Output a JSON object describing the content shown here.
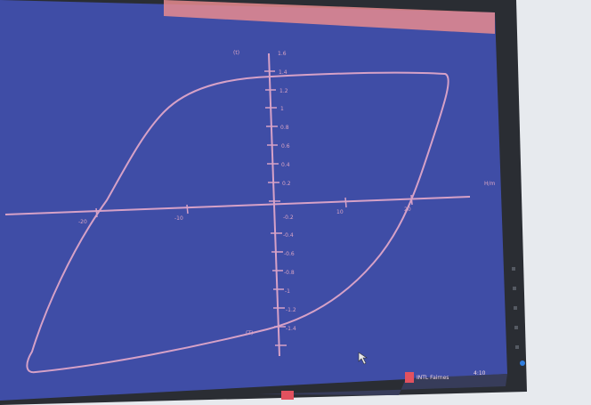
{
  "scene": {
    "wall_color": "#e7eaee",
    "bezel_color": "#2a2d33",
    "screen_color": "#3f4da6",
    "trace_color": "#d6a1c7",
    "accent_color": "#e2515f"
  },
  "plot": {
    "y_axis_label_top": "(t)",
    "y_axis_label_bottom": "(T)",
    "x_axis_unit": "H/m",
    "y_ticks": [
      "1.6",
      "1.4",
      "1.2",
      "1",
      "0.8",
      "0.6",
      "0.4",
      "0.2",
      "-0.2",
      "-0.4",
      "-0.6",
      "-0.8",
      "-1",
      "-1.2",
      "-1.4"
    ],
    "x_tick_labels": [
      "-20",
      "-10",
      "10",
      "20"
    ]
  },
  "taskbar": {
    "status_text": "INTL  Fairnes",
    "clock_text": "4:10"
  }
}
